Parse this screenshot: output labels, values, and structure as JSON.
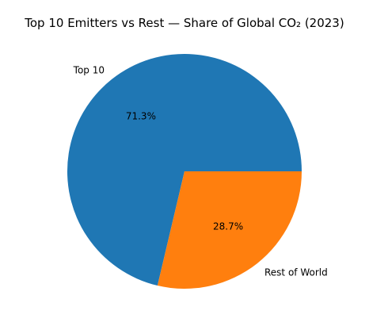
{
  "chart_data": {
    "type": "pie",
    "title": "Top 10 Emitters vs Rest — Share of Global CO₂ (2023)",
    "slices": [
      {
        "label": "Top 10",
        "value": 71.3,
        "pct_label": "71.3%",
        "color": "#1f77b4"
      },
      {
        "label": "Rest of World",
        "value": 28.7,
        "pct_label": "28.7%",
        "color": "#ff7f0e"
      }
    ],
    "start_angle": "3 o'clock",
    "direction": "counterclockwise"
  }
}
